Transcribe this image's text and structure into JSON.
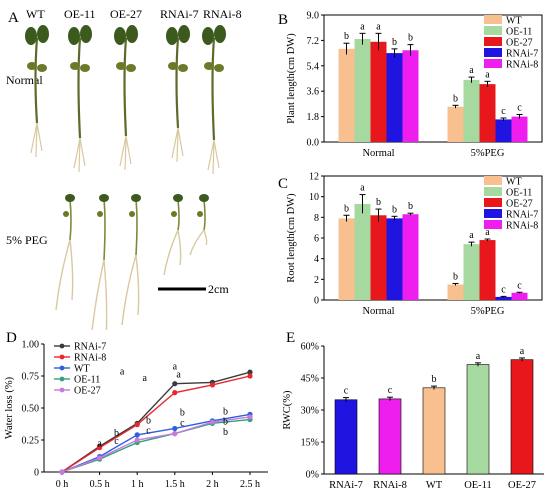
{
  "panels": {
    "A": "A",
    "B": "B",
    "C": "C",
    "D": "D",
    "E": "E"
  },
  "photo": {
    "genotypes": [
      "WT",
      "OE-11",
      "OE-27",
      "RNAi-7",
      "RNAi-8"
    ],
    "row_normal": "Normal",
    "row_peg": "5% PEG",
    "scale": "2cm"
  },
  "colors": {
    "WT": "#f9c08f",
    "OE-11": "#a6d9a0",
    "OE-27": "#e8171c",
    "RNAi-7": "#1f14e0",
    "RNAi-8": "#ee1fee",
    "plant_stem": "#5c6b2a",
    "plant_leaf": "#3c5a1e",
    "root": "#d9c9a0"
  },
  "chart_data": [
    {
      "id": "B",
      "type": "bar",
      "ylabel": "Plant length(cm DW)",
      "ylim": [
        0,
        9
      ],
      "yticks": [
        "0.0",
        "1.8",
        "3.6",
        "5.4",
        "7.2",
        "9.0"
      ],
      "categories": [
        "Normal",
        "5%PEG"
      ],
      "series": [
        {
          "name": "WT",
          "values": [
            6.6,
            2.5
          ],
          "err": [
            0.4,
            0.1
          ],
          "letters": [
            "b",
            "b"
          ]
        },
        {
          "name": "OE-11",
          "values": [
            7.3,
            4.4
          ],
          "err": [
            0.4,
            0.2
          ],
          "letters": [
            "a",
            "a"
          ]
        },
        {
          "name": "OE-27",
          "values": [
            7.1,
            4.1
          ],
          "err": [
            0.6,
            0.2
          ],
          "letters": [
            "a",
            "a"
          ]
        },
        {
          "name": "RNAi-7",
          "values": [
            6.3,
            1.6
          ],
          "err": [
            0.3,
            0.1
          ],
          "letters": [
            "b",
            "c"
          ]
        },
        {
          "name": "RNAi-8",
          "values": [
            6.5,
            1.8
          ],
          "err": [
            0.4,
            0.15
          ],
          "letters": [
            "b",
            "c"
          ]
        }
      ],
      "legend": "top-right"
    },
    {
      "id": "C",
      "type": "bar",
      "ylabel": "Root length(cm DW)",
      "ylim": [
        0,
        12
      ],
      "yticks": [
        "0",
        "2",
        "4",
        "6",
        "8",
        "10",
        "12"
      ],
      "categories": [
        "Normal",
        "5%PEG"
      ],
      "series": [
        {
          "name": "WT",
          "values": [
            7.9,
            1.5
          ],
          "err": [
            0.3,
            0.1
          ],
          "letters": [
            "b",
            "b"
          ]
        },
        {
          "name": "OE-11",
          "values": [
            9.3,
            5.4
          ],
          "err": [
            0.9,
            0.2
          ],
          "letters": [
            "a",
            "a"
          ]
        },
        {
          "name": "OE-27",
          "values": [
            8.2,
            5.8
          ],
          "err": [
            0.6,
            0.1
          ],
          "letters": [
            "b",
            "a"
          ]
        },
        {
          "name": "RNAi-7",
          "values": [
            7.9,
            0.3
          ],
          "err": [
            0.2,
            0.05
          ],
          "letters": [
            "b",
            "c"
          ]
        },
        {
          "name": "RNAi-8",
          "values": [
            8.3,
            0.7
          ],
          "err": [
            0.1,
            0.05
          ],
          "letters": [
            "b",
            "c"
          ]
        }
      ],
      "legend": "top-right"
    },
    {
      "id": "D",
      "type": "line",
      "ylabel": "Water loss (%)",
      "ylim": [
        0,
        1.0
      ],
      "yticks": [
        "0",
        "0.25",
        "0.50",
        "0.75",
        "1.00"
      ],
      "x": [
        "0 h",
        "0.5 h",
        "1 h",
        "1.5 h",
        "2 h",
        "2.5 h"
      ],
      "series": [
        {
          "name": "RNAi-7",
          "color": "#3a3a3a",
          "values": [
            0,
            0.2,
            0.38,
            0.69,
            0.7,
            0.78
          ]
        },
        {
          "name": "RNAi-8",
          "color": "#e8282e",
          "values": [
            0,
            0.19,
            0.37,
            0.62,
            0.68,
            0.75
          ]
        },
        {
          "name": "WT",
          "color": "#2f5fe0",
          "values": [
            0,
            0.12,
            0.29,
            0.34,
            0.4,
            0.45
          ]
        },
        {
          "name": "OE-11",
          "color": "#2fa37a",
          "values": [
            0,
            0.1,
            0.23,
            0.3,
            0.38,
            0.41
          ]
        },
        {
          "name": "OE-27",
          "color": "#c77ad9",
          "values": [
            0,
            0.11,
            0.25,
            0.3,
            0.39,
            0.43
          ]
        }
      ],
      "annotations": [
        {
          "x": 1,
          "y": 0.2,
          "text": "a"
        },
        {
          "x": 1.6,
          "y": 0.76,
          "text": "a"
        },
        {
          "x": 2.2,
          "y": 0.71,
          "text": "a"
        },
        {
          "x": 3.0,
          "y": 0.8,
          "text": "a"
        },
        {
          "x": 3.1,
          "y": 0.74,
          "text": "a"
        },
        {
          "x": 1.45,
          "y": 0.28,
          "text": "b"
        },
        {
          "x": 1.45,
          "y": 0.22,
          "text": "c"
        },
        {
          "x": 2.3,
          "y": 0.38,
          "text": "b"
        },
        {
          "x": 2.3,
          "y": 0.3,
          "text": "c"
        },
        {
          "x": 3.2,
          "y": 0.44,
          "text": "b"
        },
        {
          "x": 3.2,
          "y": 0.36,
          "text": "c"
        },
        {
          "x": 4.35,
          "y": 0.45,
          "text": "b"
        },
        {
          "x": 4.35,
          "y": 0.37,
          "text": "b"
        },
        {
          "x": 4.35,
          "y": 0.29,
          "text": "b"
        }
      ],
      "legend": "top-left"
    },
    {
      "id": "E",
      "type": "bar",
      "ylabel": "RWC(%)",
      "ylim": [
        0,
        60
      ],
      "yticks": [
        "0%",
        "15%",
        "30%",
        "45%",
        "60%"
      ],
      "categories": [
        "RNAi-7",
        "RNAi-8",
        "WT",
        "OE-11",
        "OE-27"
      ],
      "values": [
        34.8,
        35.2,
        40.4,
        51.3,
        53.6
      ],
      "err": [
        1.0,
        0.8,
        0.8,
        0.8,
        0.8
      ],
      "letters": [
        "c",
        "c",
        "b",
        "a",
        "a"
      ]
    }
  ]
}
